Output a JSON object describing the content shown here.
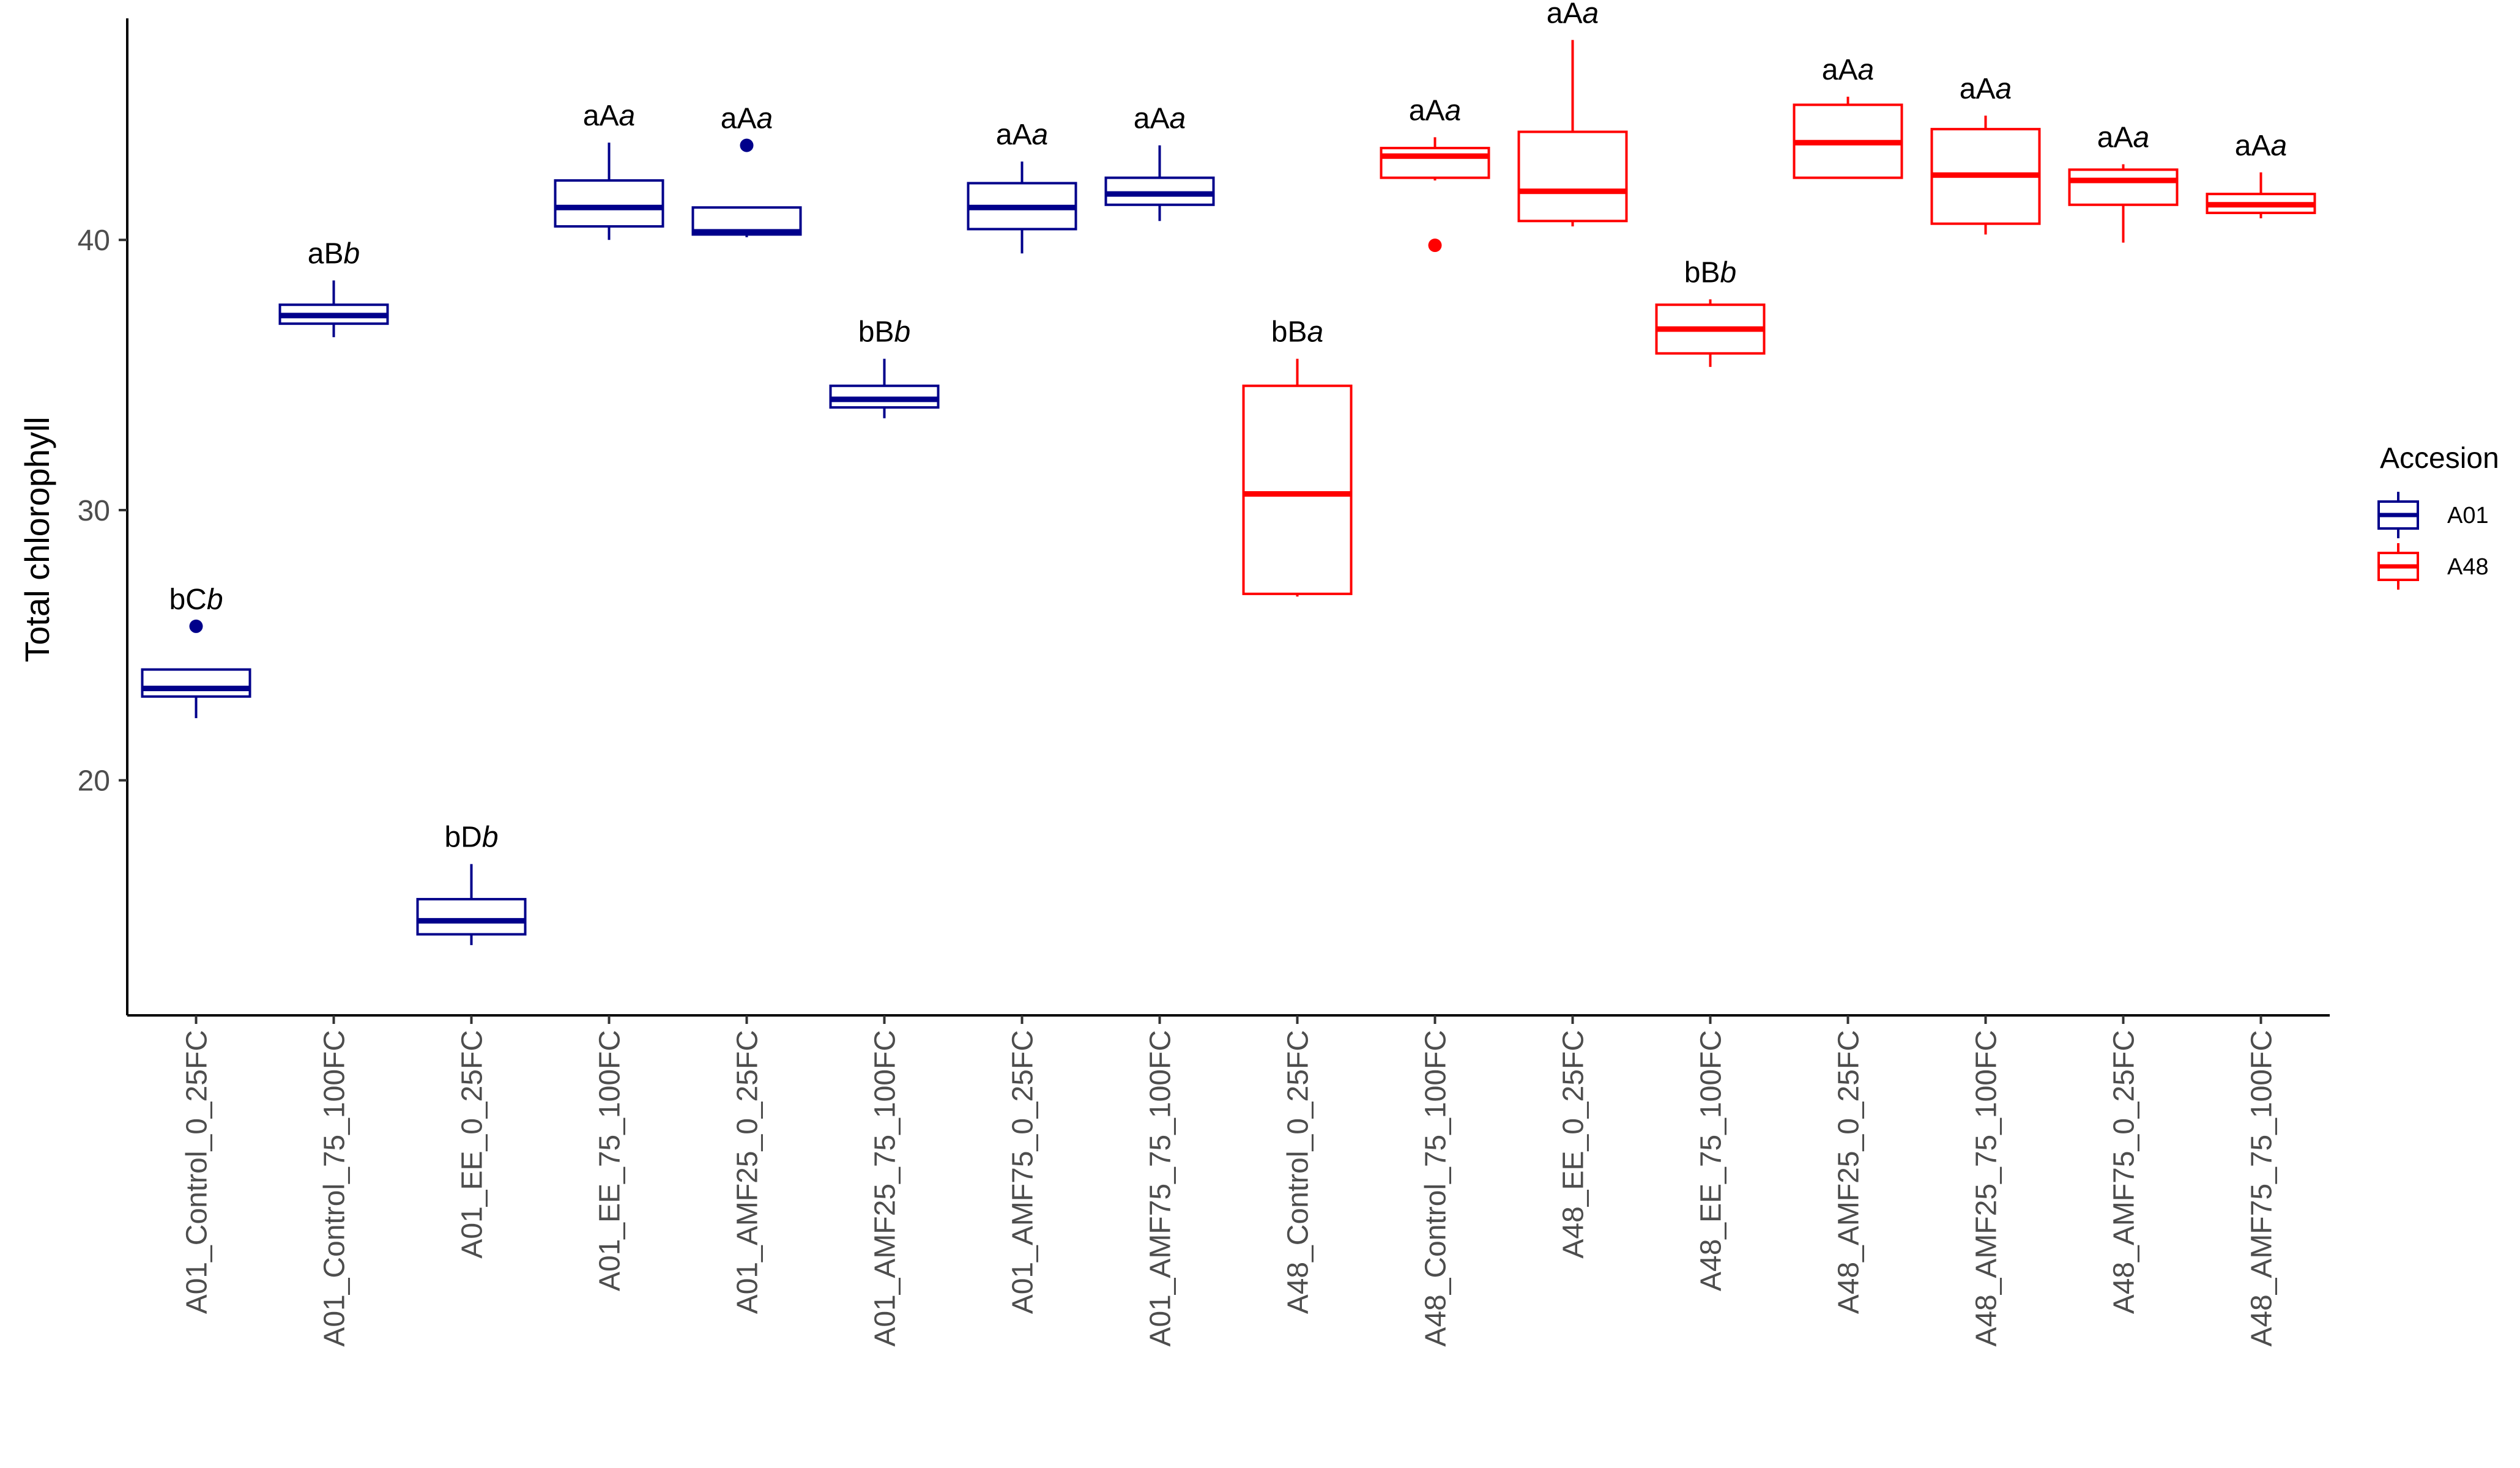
{
  "chart_data": {
    "type": "boxplot",
    "xlabel": "",
    "ylabel": "Total chlorophyll",
    "ylim": [
      11.3,
      48.2
    ],
    "yticks": [
      20,
      30,
      40
    ],
    "grid": false,
    "legend": {
      "title": "Accesion",
      "position": "right",
      "entries": [
        {
          "name": "A01",
          "color": "#00008B"
        },
        {
          "name": "A48",
          "color": "#FF0000"
        }
      ]
    },
    "categories": [
      "A01_Control_0_25FC",
      "A01_Control_75_100FC",
      "A01_EE_0_25FC",
      "A01_EE_75_100FC",
      "A01_AMF25_0_25FC",
      "A01_AMF25_75_100FC",
      "A01_AMF75_0_25FC",
      "A01_AMF75_75_100FC",
      "A48_Control_0_25FC",
      "A48_Control_75_100FC",
      "A48_EE_0_25FC",
      "A48_EE_75_100FC",
      "A48_AMF25_0_25FC",
      "A48_AMF25_75_100FC",
      "A48_AMF75_0_25FC",
      "A48_AMF75_75_100FC"
    ],
    "boxes": [
      {
        "group": "A01",
        "min": 22.3,
        "q1": 23.1,
        "median": 23.4,
        "q3": 24.1,
        "max": 24.1,
        "outliers": [
          25.7
        ],
        "label_a": "bC",
        "label_b": "b"
      },
      {
        "group": "A01",
        "min": 36.4,
        "q1": 36.9,
        "median": 37.2,
        "q3": 37.6,
        "max": 38.5,
        "outliers": [],
        "label_a": "aB",
        "label_b": "b"
      },
      {
        "group": "A01",
        "min": 13.9,
        "q1": 14.3,
        "median": 14.8,
        "q3": 15.6,
        "max": 16.9,
        "outliers": [],
        "label_a": "bD",
        "label_b": "b"
      },
      {
        "group": "A01",
        "min": 40.0,
        "q1": 40.5,
        "median": 41.2,
        "q3": 42.2,
        "max": 43.6,
        "outliers": [],
        "label_a": "aA",
        "label_b": "a"
      },
      {
        "group": "A01",
        "min": 40.1,
        "q1": 40.2,
        "median": 40.3,
        "q3": 41.2,
        "max": 41.2,
        "outliers": [
          43.5
        ],
        "label_a": "aA",
        "label_b": "a"
      },
      {
        "group": "A01",
        "min": 33.4,
        "q1": 33.8,
        "median": 34.1,
        "q3": 34.6,
        "max": 35.6,
        "outliers": [],
        "label_a": "bB",
        "label_b": "b"
      },
      {
        "group": "A01",
        "min": 39.5,
        "q1": 40.4,
        "median": 41.2,
        "q3": 42.1,
        "max": 42.9,
        "outliers": [],
        "label_a": "aA",
        "label_b": "a"
      },
      {
        "group": "A01",
        "min": 40.7,
        "q1": 41.3,
        "median": 41.7,
        "q3": 42.3,
        "max": 43.5,
        "outliers": [],
        "label_a": "aA",
        "label_b": "a"
      },
      {
        "group": "A48",
        "min": 26.8,
        "q1": 26.9,
        "median": 30.6,
        "q3": 34.6,
        "max": 35.6,
        "outliers": [],
        "label_a": "bB",
        "label_b": "a"
      },
      {
        "group": "A48",
        "min": 42.2,
        "q1": 42.3,
        "median": 43.1,
        "q3": 43.4,
        "max": 43.8,
        "outliers": [
          39.8
        ],
        "label_a": "aA",
        "label_b": "a"
      },
      {
        "group": "A48",
        "min": 40.5,
        "q1": 40.7,
        "median": 41.8,
        "q3": 44.0,
        "max": 47.4,
        "outliers": [],
        "label_a": "aA",
        "label_b": "a"
      },
      {
        "group": "A48",
        "min": 35.3,
        "q1": 35.8,
        "median": 36.7,
        "q3": 37.6,
        "max": 37.8,
        "outliers": [],
        "label_a": "bB",
        "label_b": "b"
      },
      {
        "group": "A48",
        "min": 42.3,
        "q1": 42.3,
        "median": 43.6,
        "q3": 45.0,
        "max": 45.3,
        "outliers": [],
        "label_a": "aA",
        "label_b": "a"
      },
      {
        "group": "A48",
        "min": 40.2,
        "q1": 40.6,
        "median": 42.4,
        "q3": 44.1,
        "max": 44.6,
        "outliers": [],
        "label_a": "aA",
        "label_b": "a"
      },
      {
        "group": "A48",
        "min": 39.9,
        "q1": 41.3,
        "median": 42.2,
        "q3": 42.6,
        "max": 42.8,
        "outliers": [],
        "label_a": "aA",
        "label_b": "a"
      },
      {
        "group": "A48",
        "min": 40.8,
        "q1": 41.0,
        "median": 41.3,
        "q3": 41.7,
        "max": 42.5,
        "outliers": [],
        "label_a": "aA",
        "label_b": "a"
      }
    ]
  }
}
